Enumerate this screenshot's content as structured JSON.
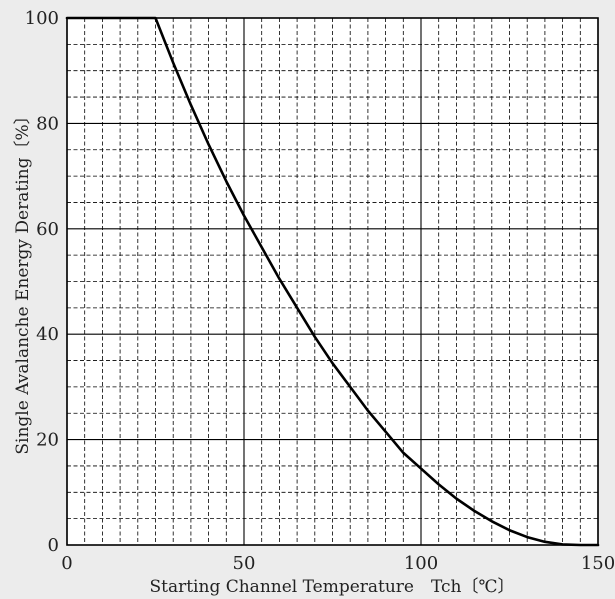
{
  "chart_data": {
    "type": "line",
    "xlabel": "Starting Channel Temperature　Tch〔℃〕",
    "ylabel": "Single Avalanche Energy Derating〔%〕",
    "xlim": [
      0,
      150
    ],
    "ylim": [
      0,
      100
    ],
    "x_ticks": [
      0,
      50,
      100,
      150
    ],
    "y_ticks": [
      0,
      20,
      40,
      60,
      80,
      100
    ],
    "grid": true,
    "series": [
      {
        "x": [
          0,
          25,
          30,
          35,
          40,
          45,
          50,
          55,
          60,
          65,
          70,
          75,
          80,
          85,
          90,
          95,
          100,
          105,
          110,
          115,
          120,
          125,
          130,
          135,
          140,
          145,
          150
        ],
        "y": [
          100,
          100,
          91.5,
          83.5,
          76,
          69,
          62.5,
          56.5,
          50.5,
          45,
          39.5,
          34.5,
          30,
          25.5,
          21.5,
          17.5,
          14.5,
          11.5,
          8.8,
          6.5,
          4.5,
          2.8,
          1.5,
          0.6,
          0.1,
          0,
          0
        ],
        "color": "#000000"
      }
    ],
    "colors": {
      "background": "#ffffff",
      "major_grid": "#000000",
      "minor_grid": "#000000",
      "curve": "#000000"
    }
  }
}
